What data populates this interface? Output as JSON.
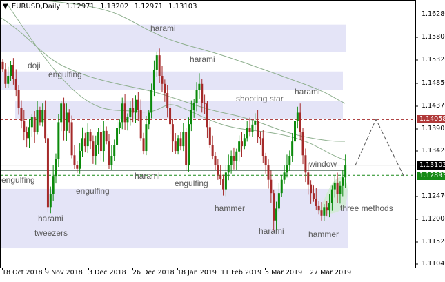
{
  "header": {
    "symbol": "EURUSD,Daily",
    "open": "1.12971",
    "high": "1.13202",
    "low": "1.12971",
    "close": "1.13103",
    "menu_icon": "triangle-down"
  },
  "colors": {
    "bull": "#0b8a0b",
    "bear": "#a52a2a",
    "zone": "#e4e4f7",
    "resistance_line": "#a52a2a",
    "support_line": "#1a8a1a",
    "current_price_line": "#b0b0b0",
    "moving_average": "#8fb08f"
  },
  "price_axis": [
    "1.16280",
    "1.15800",
    "1.15320",
    "1.14850",
    "1.14370",
    "1.13900",
    "1.13420",
    "1.12470",
    "1.12000",
    "1.11520",
    "1.11040"
  ],
  "price_tags": {
    "resistance": "1.14058",
    "current": "1.13103",
    "support": "1.12893"
  },
  "date_axis": [
    "18 Oct 2018",
    "9 Nov 2018",
    "3 Dec 2018",
    "26 Dec 2018",
    "18 Jan 2019",
    "11 Feb 2019",
    "5 Mar 2019",
    "27 Mar 2019"
  ],
  "zones": [
    {
      "from": 1.1604,
      "to": 1.1546
    },
    {
      "from": 1.1506,
      "to": 1.1468
    },
    {
      "from": 1.1445,
      "to": 1.1408
    },
    {
      "from": 1.1261,
      "to": 1.1137
    }
  ],
  "levels": {
    "resistance": 1.14058,
    "current": 1.13103,
    "support": 1.12893,
    "pivot": 1.13
  },
  "annotations": [
    "harami",
    "doji",
    "engulfing",
    "harami",
    "shooting star",
    "harami",
    "engulfing",
    "harami",
    "engulfing",
    "engulfing",
    "window",
    "hammer",
    "three methods",
    "harami",
    "tweezers",
    "harami",
    "hammer"
  ],
  "chart_data": {
    "type": "candlestick",
    "closes": [
      1.1511,
      1.148,
      1.1497,
      1.152,
      1.149,
      1.1468,
      1.143,
      1.1403,
      1.138,
      1.1367,
      1.139,
      1.1411,
      1.138,
      1.1425,
      1.14,
      1.1425,
      1.1367,
      1.1223,
      1.125,
      1.1288,
      1.1324,
      1.14,
      1.1439,
      1.1382,
      1.142,
      1.14,
      1.1331,
      1.131,
      1.1303,
      1.134,
      1.1367,
      1.135,
      1.138,
      1.136,
      1.133,
      1.1353,
      1.138,
      1.134,
      1.1382,
      1.136,
      1.131,
      1.133,
      1.1353,
      1.1389,
      1.14,
      1.1439,
      1.14,
      1.1411,
      1.143,
      1.142,
      1.1447,
      1.1425,
      1.1367,
      1.134,
      1.1396,
      1.142,
      1.1468,
      1.151,
      1.154,
      1.1497,
      1.148,
      1.1461,
      1.143,
      1.1396,
      1.136,
      1.134,
      1.1367,
      1.135,
      1.138,
      1.131,
      1.1396,
      1.1425,
      1.144,
      1.1468,
      1.148,
      1.144,
      1.1439,
      1.139,
      1.1353,
      1.133,
      1.131,
      1.129,
      1.1281,
      1.126,
      1.1295,
      1.131,
      1.133,
      1.132,
      1.1339,
      1.136,
      1.135,
      1.1367,
      1.1389,
      1.138,
      1.1395,
      1.1403,
      1.137,
      1.1367,
      1.133,
      1.131,
      1.128,
      1.1252,
      1.1195,
      1.122,
      1.1252,
      1.128,
      1.1295,
      1.131,
      1.133,
      1.136,
      1.1403,
      1.142,
      1.138,
      1.1331,
      1.1295,
      1.127,
      1.1252,
      1.124,
      1.1225,
      1.1216,
      1.1205,
      1.1223,
      1.1216,
      1.1231,
      1.126,
      1.1274,
      1.125,
      1.1267,
      1.1285,
      1.131
    ],
    "ylim": [
      1.1104,
      1.1628
    ]
  }
}
